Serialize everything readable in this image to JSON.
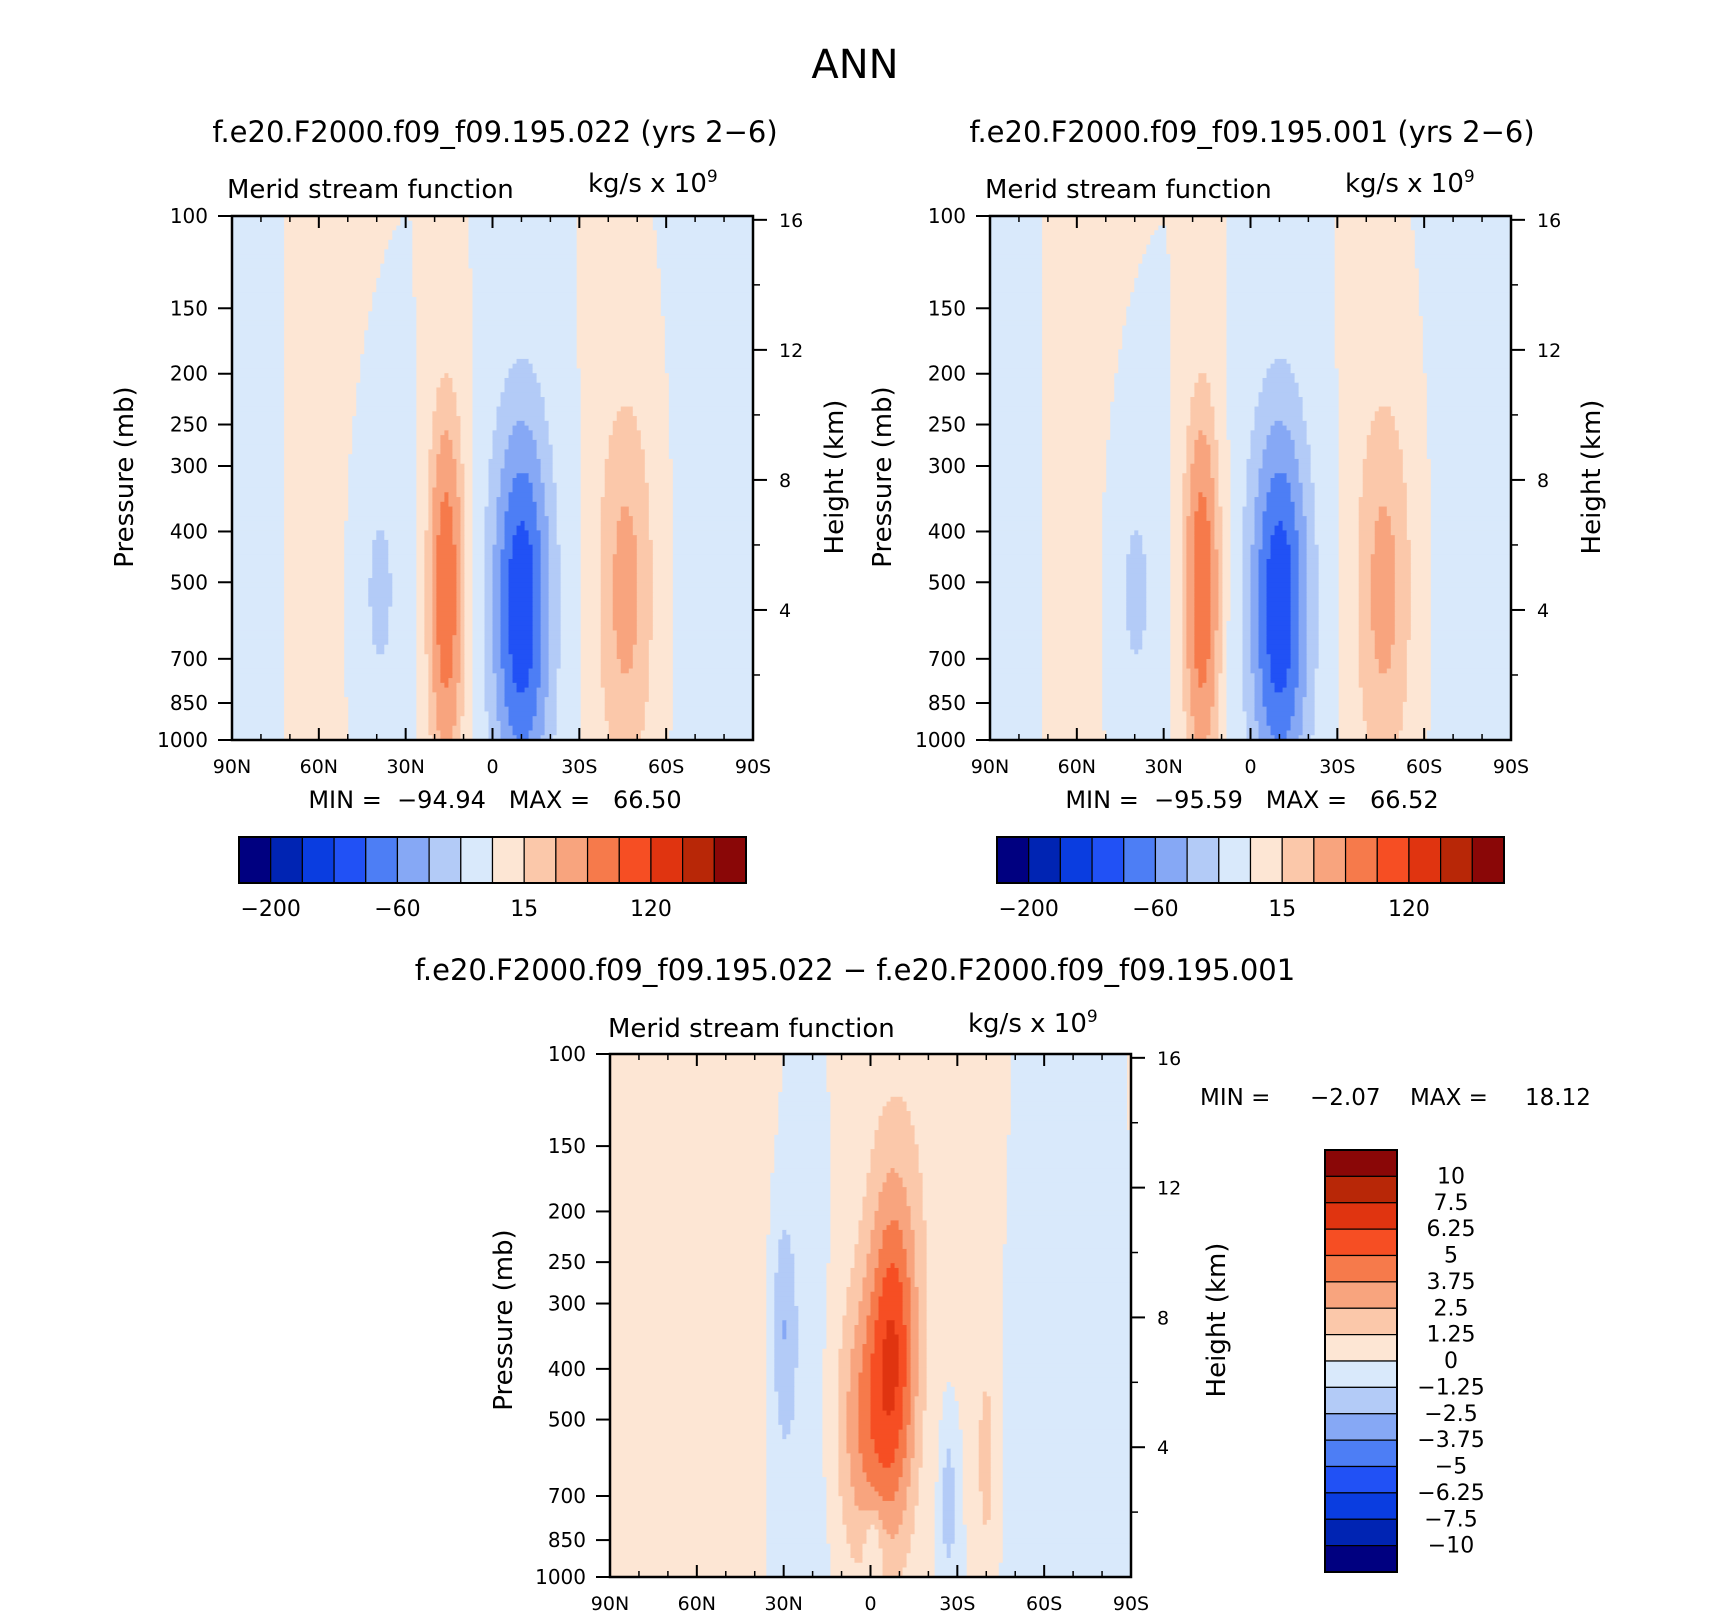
{
  "page_title": "ANN",
  "colors": {
    "main_palette": [
      "#000080",
      "#0024b3",
      "#0a3de0",
      "#2151f5",
      "#4d7ef5",
      "#86a8f5",
      "#b3cbf7",
      "#d9e9fb",
      "#fde6d4",
      "#fbc8aa",
      "#f8a47e",
      "#f67a4b",
      "#f64e23",
      "#e03410",
      "#b82707",
      "#8a0707"
    ],
    "diff_palette": [
      "#000080",
      "#0024b3",
      "#0a3de0",
      "#2151f5",
      "#4d7ef5",
      "#86a8f5",
      "#b3cbf7",
      "#d9e9fb",
      "#fde6d4",
      "#fbc8aa",
      "#f8a47e",
      "#f67a4b",
      "#f64e23",
      "#e03410",
      "#b82707",
      "#8a0707"
    ]
  },
  "chart_data": [
    {
      "id": "panel1",
      "type": "heatmap",
      "title": "f.e20.F2000.f09_f09.195.022 (yrs 2−6)",
      "subtitle_left": "Merid stream function",
      "units": "kg/s x 10",
      "units_exp": "9",
      "ylabel": "Pressure (mb)",
      "ylabel_right": "Height (km)",
      "x_ticks": [
        "90N",
        "60N",
        "30N",
        "0",
        "30S",
        "60S",
        "90S"
      ],
      "y_ticks": [
        100,
        150,
        200,
        250,
        300,
        400,
        500,
        700,
        850,
        1000
      ],
      "y_right_ticks": [
        16,
        12,
        8,
        4
      ],
      "stats": "MIN =  −94.94   MAX =   66.50",
      "colorbar_labels": [
        "−200",
        "−60",
        "15",
        "120"
      ],
      "cells": [
        {
          "lat": -16,
          "p": 500,
          "value": 55,
          "wlat": 5,
          "hp": 0.7
        },
        {
          "lat": -16,
          "p": 450,
          "value": 30,
          "wlat": 11,
          "hp": 1.5
        },
        {
          "lat": 10,
          "p": 550,
          "value": -70,
          "wlat": 13,
          "hp": 1.1
        },
        {
          "lat": 10,
          "p": 770,
          "value": -95,
          "wlat": 4,
          "hp": 0.28
        },
        {
          "lat": 45,
          "p": 500,
          "value": 30,
          "wlat": 8,
          "hp": 1.0
        },
        {
          "lat": -36,
          "p": 500,
          "value": -20,
          "wlat": 8,
          "hp": 1.1
        }
      ]
    },
    {
      "id": "panel2",
      "type": "heatmap",
      "title": "f.e20.F2000.f09_f09.195.001 (yrs 2−6)",
      "subtitle_left": "Merid stream function",
      "units": "kg/s x 10",
      "units_exp": "9",
      "ylabel": "Pressure (mb)",
      "ylabel_right": "Height (km)",
      "x_ticks": [
        "90N",
        "60N",
        "30N",
        "0",
        "30S",
        "60S",
        "90S"
      ],
      "y_ticks": [
        100,
        150,
        200,
        250,
        300,
        400,
        500,
        700,
        850,
        1000
      ],
      "y_right_ticks": [
        16,
        12,
        8,
        4
      ],
      "stats": "MIN =  −95.59   MAX =   66.52",
      "colorbar_labels": [
        "−200",
        "−60",
        "15",
        "120"
      ]
    },
    {
      "id": "panel3",
      "type": "heatmap",
      "title": "f.e20.F2000.f09_f09.195.022 − f.e20.F2000.f09_f09.195.001",
      "subtitle_left": "Merid stream function",
      "units": "kg/s x 10",
      "units_exp": "9",
      "ylabel": "Pressure (mb)",
      "ylabel_right": "Height (km)",
      "x_ticks": [
        "90N",
        "60N",
        "30N",
        "0",
        "30S",
        "60S",
        "90S"
      ],
      "y_ticks": [
        100,
        150,
        200,
        250,
        300,
        400,
        500,
        700,
        850,
        1000
      ],
      "y_right_ticks": [
        16,
        12,
        8,
        4
      ],
      "stats_min_label": "MIN =",
      "stats_min": "−2.07",
      "stats_max_label": "MAX =",
      "stats_max": "18.12",
      "colorbar_labels": [
        "10",
        "7.5",
        "6.25",
        "5",
        "3.75",
        "2.5",
        "1.25",
        "0",
        "−1.25",
        "−2.5",
        "−3.75",
        "−5",
        "−6.25",
        "−7.5",
        "−10"
      ]
    }
  ]
}
